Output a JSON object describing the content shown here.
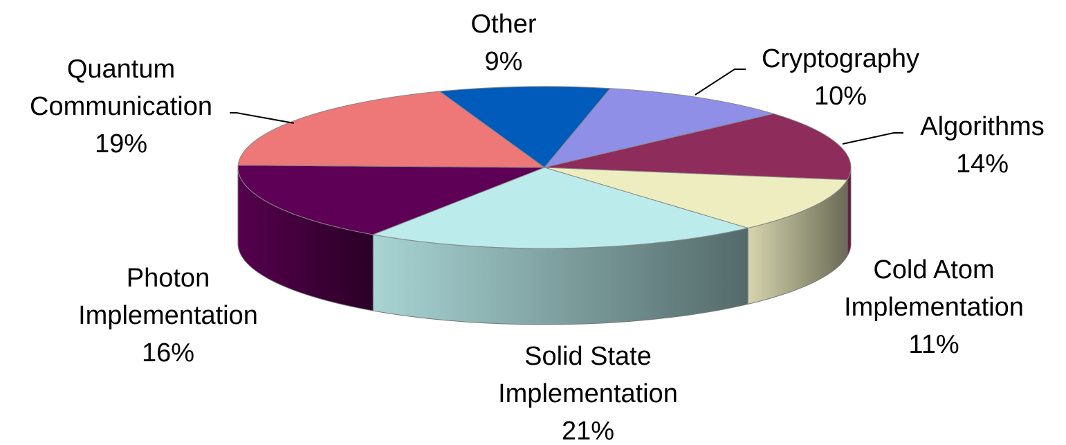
{
  "chart_data": {
    "type": "pie3d",
    "categories": [
      "Other",
      "Cryptography",
      "Algorithms",
      "Cold Atom Implementation",
      "Solid State Implementation",
      "Photon Implementation",
      "Quantum Communication"
    ],
    "values": [
      9,
      10,
      14,
      11,
      21,
      16,
      19
    ],
    "value_labels": [
      "9%",
      "10%",
      "14%",
      "11%",
      "21%",
      "16%",
      "19%"
    ],
    "colors": [
      "#005bbb",
      "#8f8fe8",
      "#8e2c5b",
      "#eeedc0",
      "#bbebeb",
      "#5e0055",
      "#ee7777"
    ]
  }
}
